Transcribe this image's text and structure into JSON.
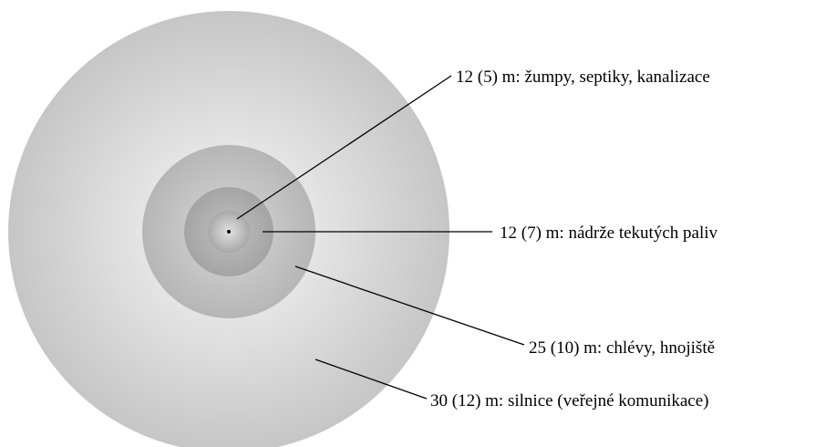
{
  "zones": [
    {
      "id": "road",
      "label": "30 (12) m: silnice (veřejné komunikace)",
      "color_center": "#f8f8f8",
      "color_edge": "#c6c6c6"
    },
    {
      "id": "stable",
      "label": "25 (10) m: chlévy, hnojiště",
      "color_center": "#d8d8d8",
      "color_edge": "#b6b6b6"
    },
    {
      "id": "fuel",
      "label": "12 (7) m: nádrže tekutých paliv",
      "color_center": "#c0c0c0",
      "color_edge": "#a4a4a4"
    },
    {
      "id": "septic",
      "label": "12 (5) m: žumpy, septiky, kanalizace",
      "color_center": "#e2e2e2",
      "color_edge": "#a8a8a8"
    }
  ],
  "center_point_color": "#000000",
  "line_color": "#000000"
}
